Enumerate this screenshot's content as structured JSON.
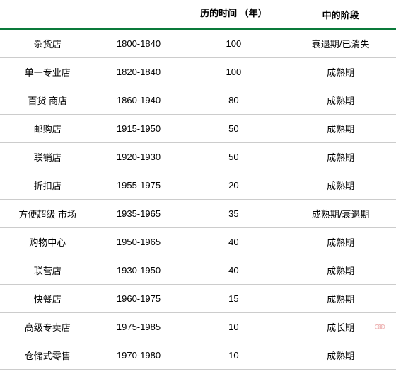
{
  "table": {
    "headers": {
      "col1": "",
      "col2": "",
      "col3": "历的时间 （年）",
      "col4": "中的阶段"
    },
    "rows": [
      {
        "name": "杂货店",
        "years": "1800-1840",
        "duration": "100",
        "stage": "衰退期/已消失"
      },
      {
        "name": "单一专业店",
        "years": "1820-1840",
        "duration": "100",
        "stage": "成熟期"
      },
      {
        "name": "百货 商店",
        "years": "1860-1940",
        "duration": "80",
        "stage": "成熟期"
      },
      {
        "name": "邮购店",
        "years": "1915-1950",
        "duration": "50",
        "stage": "成熟期"
      },
      {
        "name": "联销店",
        "years": "1920-1930",
        "duration": "50",
        "stage": "成熟期"
      },
      {
        "name": "折扣店",
        "years": "1955-1975",
        "duration": "20",
        "stage": "成熟期"
      },
      {
        "name": "方便超级 市场",
        "years": "1935-1965",
        "duration": "35",
        "stage": "成熟期/衰退期"
      },
      {
        "name": "购物中心",
        "years": "1950-1965",
        "duration": "40",
        "stage": "成熟期"
      },
      {
        "name": "联营店",
        "years": "1930-1950",
        "duration": "40",
        "stage": "成熟期"
      },
      {
        "name": "快餐店",
        "years": "1960-1975",
        "duration": "15",
        "stage": "成熟期"
      },
      {
        "name": "高级专卖店",
        "years": "1975-1985",
        "duration": "10",
        "stage": "成长期"
      },
      {
        "name": "仓储式零售",
        "years": "1970-1980",
        "duration": "10",
        "stage": "成熟期"
      }
    ],
    "header_border_color": "#0a7a3a",
    "row_border_color": "#cccccc",
    "font_size": 13
  }
}
